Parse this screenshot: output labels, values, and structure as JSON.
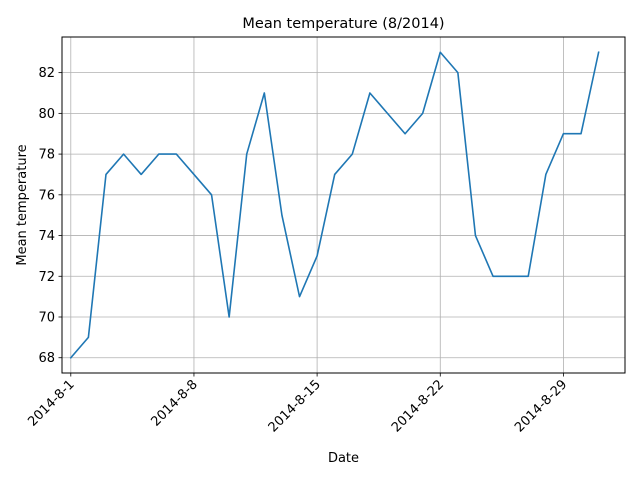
{
  "chart_data": {
    "type": "line",
    "title": "Mean temperature (8/2014)",
    "xlabel": "Date",
    "ylabel": "Mean temperature",
    "grid": true,
    "line_color": "#1f77b4",
    "x_ticks": [
      {
        "day": 1,
        "label": "2014-8-1"
      },
      {
        "day": 8,
        "label": "2014-8-8"
      },
      {
        "day": 15,
        "label": "2014-8-15"
      },
      {
        "day": 22,
        "label": "2014-8-22"
      },
      {
        "day": 29,
        "label": "2014-8-29"
      }
    ],
    "y_ticks": [
      68,
      70,
      72,
      74,
      76,
      78,
      80,
      82
    ],
    "xlim": [
      0.5,
      32.5
    ],
    "ylim": [
      67.25,
      83.75
    ],
    "series": [
      {
        "x": [
          1,
          2,
          3,
          4,
          5,
          6,
          7,
          8,
          9,
          10,
          11,
          12,
          13,
          14,
          15,
          16,
          17,
          18,
          19,
          20,
          21,
          22,
          23,
          24,
          25,
          26,
          27,
          28,
          29,
          30,
          31
        ],
        "values": [
          68,
          69,
          77,
          78,
          77,
          78,
          78,
          77,
          76,
          70,
          78,
          81,
          75,
          71,
          73,
          77,
          78,
          81,
          80,
          79,
          80,
          83,
          82,
          74,
          72,
          72,
          72,
          77,
          79,
          79,
          83
        ]
      }
    ]
  }
}
